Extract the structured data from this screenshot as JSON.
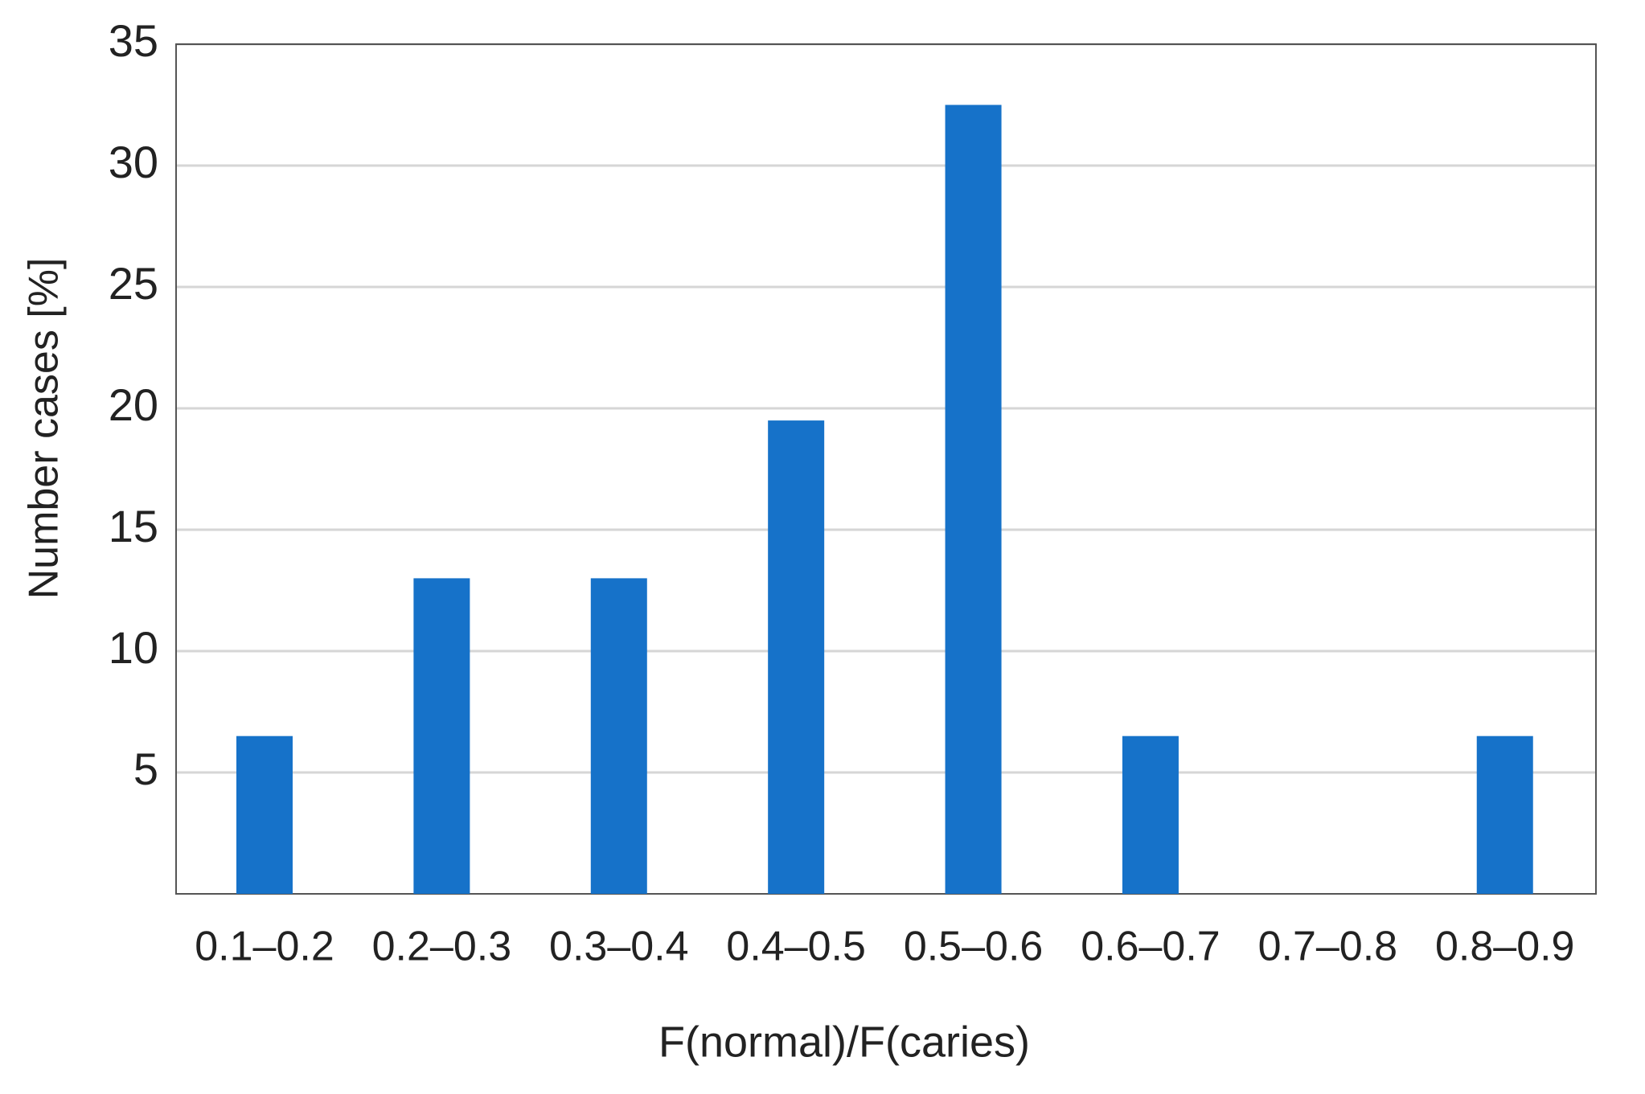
{
  "chart_data": {
    "type": "bar",
    "x_label": "F(normal)/F(caries)",
    "y_label": "Number cases [%]",
    "categories": [
      "0.1–0.2",
      "0.2–0.3",
      "0.3–0.4",
      "0.4–0.5",
      "0.5–0.6",
      "0.6–0.7",
      "0.7–0.8",
      "0.8–0.9"
    ],
    "values": [
      6.5,
      13,
      13,
      19.5,
      32.5,
      6.5,
      0,
      6.5
    ],
    "color": "#1672c9",
    "ylim": [
      0,
      35
    ],
    "yticks": [
      5,
      10,
      15,
      20,
      25,
      30,
      35
    ],
    "grid": true
  }
}
